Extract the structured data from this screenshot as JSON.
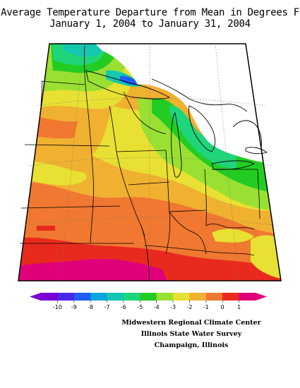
{
  "title": {
    "line1": "Average Temperature Departure from Mean in Degrees F",
    "line2": "January 1, 2004 to January 31, 2004"
  },
  "legend": {
    "labels": [
      "-10",
      "-9",
      "-8",
      "-7",
      "-6",
      "-5",
      "-4",
      "-3",
      "-2",
      "-1",
      "0",
      "1"
    ],
    "colors": [
      "#7a00d4",
      "#4b26e6",
      "#1f5ef0",
      "#0aa4e0",
      "#14c7b0",
      "#1fd47a",
      "#22cc22",
      "#99e033",
      "#e8e032",
      "#f0b030",
      "#f07830",
      "#e82a1e",
      "#e0007a"
    ]
  },
  "credits": {
    "line1": "Midwestern Regional Climate Center",
    "line2": "Illinois State Water Survey",
    "line3": "Champaign, Illinois"
  }
}
